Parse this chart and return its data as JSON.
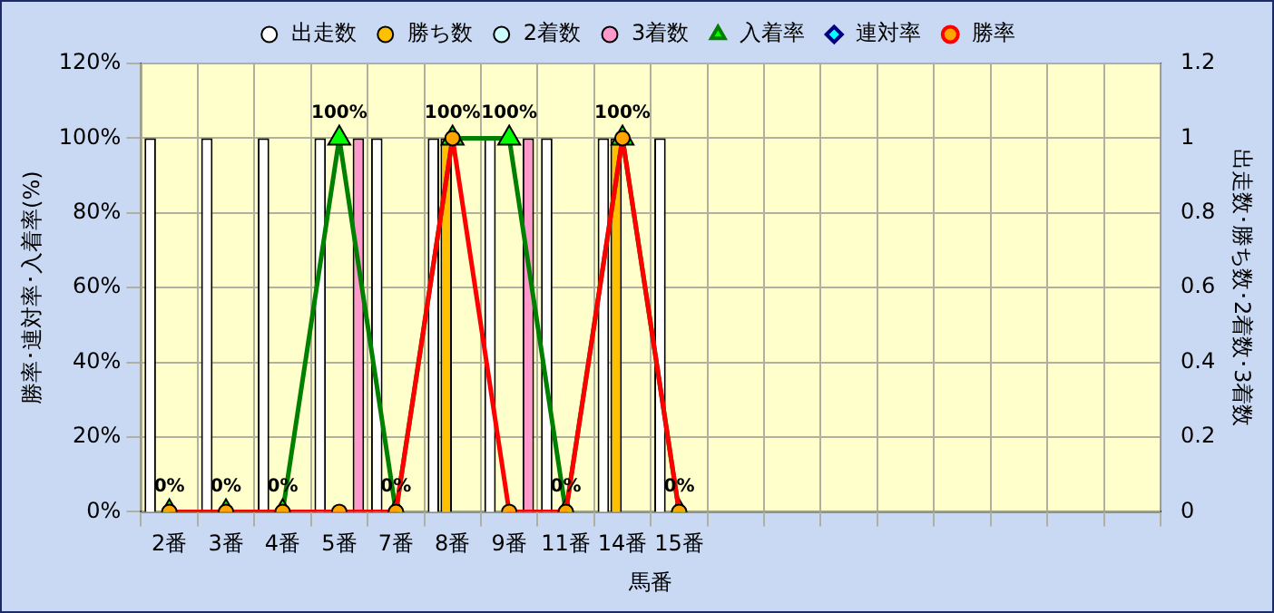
{
  "chart_data": {
    "type": "bar",
    "xlabel": "馬番",
    "ylabel": "勝率･連対率･入着率(%)",
    "y2label": "出走数･勝ち数･2着数･3着数",
    "categories": [
      "2番",
      "3番",
      "4番",
      "5番",
      "7番",
      "8番",
      "9番",
      "11番",
      "14番",
      "15番",
      null,
      null,
      null,
      null,
      null,
      null,
      null,
      null
    ],
    "series": [
      {
        "name": "出走数",
        "axis": "y2",
        "color": "#ffffff",
        "values": [
          1,
          1,
          1,
          1,
          1,
          1,
          1,
          1,
          1,
          1,
          null,
          null,
          null,
          null,
          null,
          null,
          null,
          null
        ]
      },
      {
        "name": "勝ち数",
        "axis": "y2",
        "color": "#ffc000",
        "values": [
          0,
          0,
          0,
          0,
          0,
          1,
          0,
          0,
          1,
          0,
          null,
          null,
          null,
          null,
          null,
          null,
          null,
          null
        ]
      },
      {
        "name": "2着数",
        "axis": "y2",
        "color": "#ccffff",
        "values": [
          0,
          0,
          0,
          0,
          0,
          0,
          0,
          0,
          0,
          0,
          null,
          null,
          null,
          null,
          null,
          null,
          null,
          null
        ]
      },
      {
        "name": "3着数",
        "axis": "y2",
        "color": "#ff99cc",
        "values": [
          0,
          0,
          0,
          1,
          0,
          0,
          1,
          0,
          0,
          0,
          null,
          null,
          null,
          null,
          null,
          null,
          null,
          null
        ]
      },
      {
        "name": "入着率",
        "type": "line",
        "axis": "y",
        "color": "#008000",
        "marker": "triangle",
        "values": [
          0,
          0,
          0,
          100,
          0,
          100,
          100,
          0,
          100,
          0,
          null,
          null,
          null,
          null,
          null,
          null,
          null,
          null
        ],
        "value_labels": [
          "0%",
          "0%",
          "0%",
          "100%",
          "0%",
          "100%",
          "100%",
          "0%",
          "100%",
          "0%",
          null,
          null,
          null,
          null,
          null,
          null,
          null,
          null
        ]
      },
      {
        "name": "連対率",
        "type": "line",
        "axis": "y",
        "color": "#000080",
        "marker": "diamond",
        "values": [
          null,
          null,
          null,
          null,
          null,
          null,
          null,
          null,
          null,
          null,
          null,
          null,
          null,
          null,
          null,
          null,
          null,
          null
        ]
      },
      {
        "name": "勝率",
        "type": "line",
        "axis": "y",
        "color": "#ff0000",
        "marker": "circle",
        "values": [
          0,
          0,
          0,
          0,
          0,
          100,
          0,
          0,
          100,
          0,
          null,
          null,
          null,
          null,
          null,
          null,
          null,
          null
        ]
      }
    ],
    "ylim": [
      0,
      120
    ],
    "yticks": [
      {
        "value": 0,
        "label": "0%"
      },
      {
        "value": 20,
        "label": "20%"
      },
      {
        "value": 40,
        "label": "40%"
      },
      {
        "value": 60,
        "label": "60%"
      },
      {
        "value": 80,
        "label": "80%"
      },
      {
        "value": 100,
        "label": "100%"
      },
      {
        "value": 120,
        "label": "120%"
      }
    ],
    "y2lim": [
      0,
      1.2
    ],
    "y2ticks": [
      0,
      0.2,
      0.4,
      0.6,
      0.8,
      1,
      1.2
    ],
    "grid": true,
    "legend": "top"
  }
}
